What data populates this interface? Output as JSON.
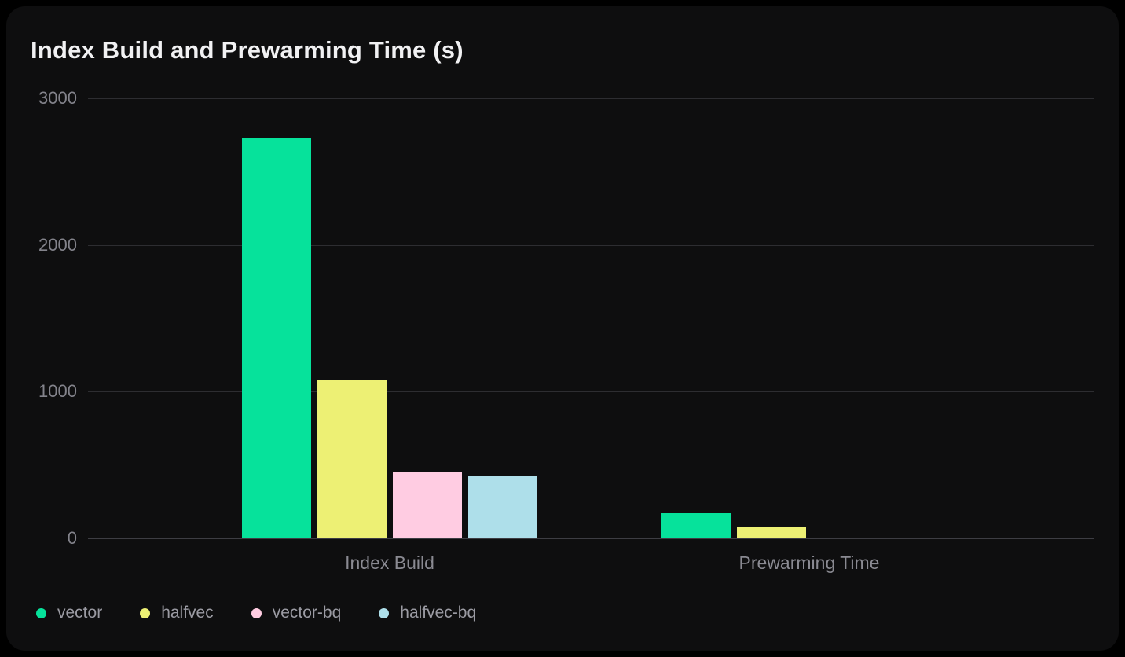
{
  "chart_data": {
    "type": "bar",
    "title": "Index Build and Prewarming Time (s)",
    "categories": [
      "Index Build",
      "Prewarming Time"
    ],
    "series": [
      {
        "name": "vector",
        "color": "#06e29b",
        "values": [
          2730,
          170
        ]
      },
      {
        "name": "halfvec",
        "color": "#edf074",
        "values": [
          1080,
          75
        ]
      },
      {
        "name": "vector-bq",
        "color": "#ffcce2",
        "values": [
          455,
          0
        ]
      },
      {
        "name": "halfvec-bq",
        "color": "#aedfea",
        "values": [
          425,
          0
        ]
      }
    ],
    "xlabel": "",
    "ylabel": "",
    "yticks": [
      0,
      1000,
      2000,
      3000
    ],
    "ylim": [
      0,
      3000
    ],
    "grid": true,
    "legend_position": "bottom-left"
  },
  "colors": {
    "page_background": "#000000",
    "card_background": "#0e0e0f",
    "title_text": "#f1f1f3",
    "axis_text": "#83838b",
    "legend_text": "#9b9ba3",
    "gridline": "#2d2d31",
    "zero_line": "#3d3d43"
  }
}
